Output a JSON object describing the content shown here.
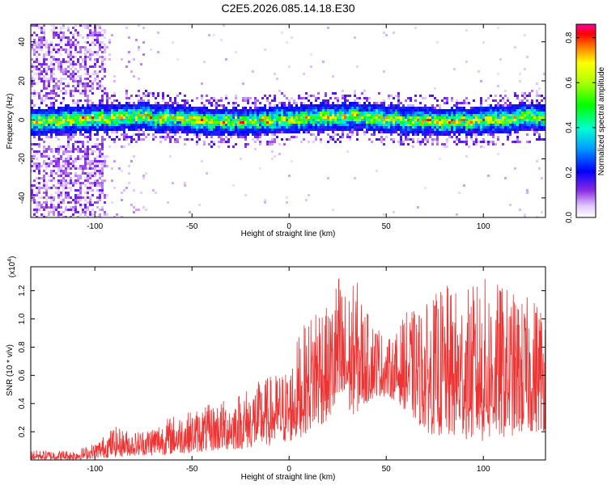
{
  "title": "C2E5.2026.085.14.18.E30",
  "chart_data": [
    {
      "type": "heatmap",
      "xlabel": "Height of straight line (km)",
      "ylabel": "Frequency (Hz)",
      "xlim": [
        -133,
        132
      ],
      "ylim": [
        -50,
        49
      ],
      "xticks": [
        -100,
        -50,
        0,
        50,
        100
      ],
      "yticks": [
        -40,
        -20,
        0,
        20,
        40
      ],
      "colorbar": {
        "label": "Normalized spectral amplitude",
        "range": [
          0.0,
          0.86
        ],
        "ticks": [
          "0.0",
          "0.2",
          "0.4",
          "0.6",
          "0.8"
        ]
      },
      "description_values": {
        "band_center_hz": 1,
        "band_halfwidth_hz": 7,
        "noisy_region_below_km": -95
      }
    },
    {
      "type": "line",
      "xlabel": "Height of straight line (km)",
      "ylabel": "SNR (10 * v/v)",
      "exponent_label": "(x10",
      "exponent_power": "4",
      "exponent_close": ")",
      "xlim": [
        -133,
        132
      ],
      "ylim": [
        0,
        1.37
      ],
      "xticks": [
        -100,
        -50,
        0,
        50,
        100
      ],
      "yticks": [
        "0.2",
        "0.4",
        "0.6",
        "0.8",
        "1.0",
        "1.2"
      ],
      "series": [
        {
          "name": "SNR",
          "color": "#ee3333",
          "envelope_x": [
            -133,
            -110,
            -100,
            -90,
            -80,
            -70,
            -60,
            -50,
            -40,
            -30,
            -20,
            -10,
            0,
            5,
            10,
            15,
            20,
            25,
            30,
            35,
            40,
            45,
            50,
            55,
            60,
            70,
            80,
            90,
            100,
            110,
            120,
            132
          ],
          "envelope_low": [
            0.0,
            0.0,
            0.01,
            0.02,
            0.03,
            0.03,
            0.04,
            0.05,
            0.06,
            0.07,
            0.08,
            0.1,
            0.12,
            0.15,
            0.2,
            0.22,
            0.28,
            0.3,
            0.3,
            0.33,
            0.4,
            0.45,
            0.45,
            0.42,
            0.35,
            0.2,
            0.15,
            0.15,
            0.12,
            0.15,
            0.18,
            0.2
          ],
          "envelope_high": [
            0.07,
            0.07,
            0.12,
            0.24,
            0.2,
            0.25,
            0.32,
            0.35,
            0.4,
            0.45,
            0.53,
            0.6,
            0.65,
            0.9,
            1.0,
            1.25,
            1.05,
            1.37,
            1.2,
            1.28,
            1.05,
            1.0,
            0.85,
            0.9,
            1.05,
            1.1,
            1.25,
            1.2,
            1.3,
            1.25,
            1.15,
            1.2
          ]
        }
      ]
    }
  ]
}
